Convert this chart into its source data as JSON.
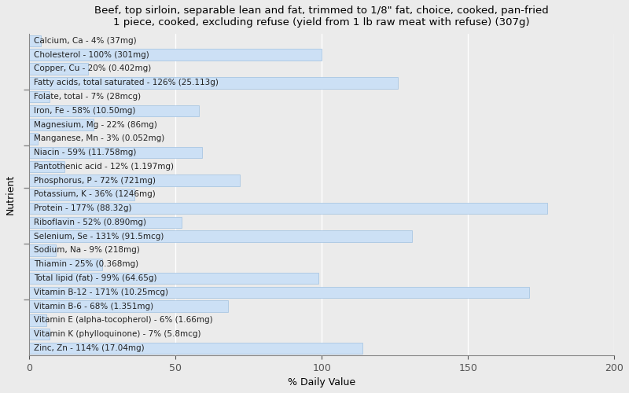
{
  "title": "Beef, top sirloin, separable lean and fat, trimmed to 1/8\" fat, choice, cooked, pan-fried\n1 piece, cooked, excluding refuse (yield from 1 lb raw meat with refuse) (307g)",
  "xlabel": "% Daily Value",
  "ylabel": "Nutrient",
  "xlim": [
    0,
    200
  ],
  "xticks": [
    0,
    50,
    100,
    150,
    200
  ],
  "background_color": "#ebebeb",
  "bar_color": "#cce0f5",
  "bar_edge_color": "#a0c0e0",
  "nutrients": [
    {
      "label": "Calcium, Ca - 4% (37mg)",
      "value": 4
    },
    {
      "label": "Cholesterol - 100% (301mg)",
      "value": 100
    },
    {
      "label": "Copper, Cu - 20% (0.402mg)",
      "value": 20
    },
    {
      "label": "Fatty acids, total saturated - 126% (25.113g)",
      "value": 126
    },
    {
      "label": "Folate, total - 7% (28mcg)",
      "value": 7
    },
    {
      "label": "Iron, Fe - 58% (10.50mg)",
      "value": 58
    },
    {
      "label": "Magnesium, Mg - 22% (86mg)",
      "value": 22
    },
    {
      "label": "Manganese, Mn - 3% (0.052mg)",
      "value": 3
    },
    {
      "label": "Niacin - 59% (11.758mg)",
      "value": 59
    },
    {
      "label": "Pantothenic acid - 12% (1.197mg)",
      "value": 12
    },
    {
      "label": "Phosphorus, P - 72% (721mg)",
      "value": 72
    },
    {
      "label": "Potassium, K - 36% (1246mg)",
      "value": 36
    },
    {
      "label": "Protein - 177% (88.32g)",
      "value": 177
    },
    {
      "label": "Riboflavin - 52% (0.890mg)",
      "value": 52
    },
    {
      "label": "Selenium, Se - 131% (91.5mcg)",
      "value": 131
    },
    {
      "label": "Sodium, Na - 9% (218mg)",
      "value": 9
    },
    {
      "label": "Thiamin - 25% (0.368mg)",
      "value": 25
    },
    {
      "label": "Total lipid (fat) - 99% (64.65g)",
      "value": 99
    },
    {
      "label": "Vitamin B-12 - 171% (10.25mcg)",
      "value": 171
    },
    {
      "label": "Vitamin B-6 - 68% (1.351mg)",
      "value": 68
    },
    {
      "label": "Vitamin E (alpha-tocopherol) - 6% (1.66mg)",
      "value": 6
    },
    {
      "label": "Vitamin K (phylloquinone) - 7% (5.8mcg)",
      "value": 7
    },
    {
      "label": "Zinc, Zn - 114% (17.04mg)",
      "value": 114
    }
  ],
  "title_fontsize": 9.5,
  "label_fontsize": 7.5,
  "axis_fontsize": 9,
  "ylabel_fontsize": 9
}
